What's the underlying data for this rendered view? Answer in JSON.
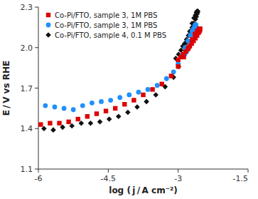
{
  "chart_data": {
    "type": "scatter",
    "xlabel": "log ( j / A cm⁻²)",
    "ylabel": "E / V vs RHE",
    "xlim": [
      -6,
      -1.5
    ],
    "ylim": [
      1.1,
      2.3
    ],
    "xticks": [
      -6,
      -4.5,
      -3,
      -1.5
    ],
    "yticks": [
      1.1,
      1.4,
      1.7,
      {
        "value": 2.0,
        "label": "2.0"
      },
      2.3
    ],
    "grid": false,
    "legend": "upper left",
    "series": [
      {
        "name": "Co-Pi/FTO, sample 3, 1M PBS",
        "color": "#dd0000",
        "marker": "square",
        "x": [
          -5.95,
          -5.75,
          -5.55,
          -5.35,
          -5.15,
          -4.95,
          -4.75,
          -4.55,
          -4.35,
          -4.15,
          -3.95,
          -3.75,
          -3.55,
          -3.35,
          -3.15,
          -3.0,
          -2.88,
          -2.78,
          -2.7,
          -2.64,
          -2.595,
          -2.565,
          -2.545,
          -2.535,
          -2.53,
          -2.535,
          -2.545,
          -2.565,
          -2.595,
          -2.63,
          -2.67,
          -2.71,
          -2.75,
          -2.79,
          -2.84,
          -2.89,
          -2.94,
          -3.0
        ],
        "values": [
          1.43,
          1.44,
          1.44,
          1.45,
          1.47,
          1.49,
          1.51,
          1.53,
          1.55,
          1.58,
          1.61,
          1.65,
          1.69,
          1.73,
          1.79,
          1.86,
          1.93,
          2.0,
          2.06,
          2.1,
          2.12,
          2.13,
          2.14,
          2.14,
          2.14,
          2.13,
          2.12,
          2.11,
          2.09,
          2.07,
          2.05,
          2.03,
          2.01,
          1.99,
          1.97,
          1.95,
          1.93,
          1.91
        ]
      },
      {
        "name": "Co-Pi/FTO, sample 3, 1M PBS",
        "color": "#1e90ff",
        "marker": "circle",
        "x": [
          -5.85,
          -5.65,
          -5.45,
          -5.25,
          -5.05,
          -4.85,
          -4.65,
          -4.45,
          -4.25,
          -4.05,
          -3.85,
          -3.65,
          -3.45,
          -3.25,
          -3.1,
          -3.0,
          -2.92,
          -2.85,
          -2.79,
          -2.74,
          -2.7,
          -2.67,
          -2.645,
          -2.63,
          -2.62,
          -2.615,
          -2.62,
          -2.63,
          -2.65,
          -2.67,
          -2.7,
          -2.73,
          -2.76,
          -2.79,
          -2.82,
          -2.86
        ],
        "values": [
          1.57,
          1.56,
          1.55,
          1.54,
          1.57,
          1.59,
          1.6,
          1.61,
          1.63,
          1.65,
          1.67,
          1.69,
          1.72,
          1.77,
          1.82,
          1.88,
          1.94,
          2.0,
          2.05,
          2.09,
          2.12,
          2.14,
          2.16,
          2.17,
          2.17,
          2.16,
          2.14,
          2.12,
          2.1,
          2.07,
          2.05,
          2.03,
          2.01,
          1.99,
          1.97,
          1.95
        ]
      },
      {
        "name": "Co-Pi/FTO, sample 4, 0.1 M PBS",
        "color": "#111111",
        "marker": "diamond",
        "x": [
          -5.88,
          -5.68,
          -5.48,
          -5.28,
          -5.08,
          -4.88,
          -4.68,
          -4.48,
          -4.28,
          -4.08,
          -3.88,
          -3.68,
          -3.48,
          -3.28,
          -3.1,
          -2.99,
          -2.9,
          -2.82,
          -2.75,
          -2.7,
          -2.66,
          -2.63,
          -2.61,
          -2.595,
          -2.585,
          -2.58,
          -2.585,
          -2.595,
          -2.61,
          -2.63,
          -2.66,
          -2.7,
          -2.74,
          -2.78,
          -2.82,
          -2.86,
          -2.9,
          -2.94,
          -2.99,
          -3.05
        ],
        "values": [
          1.4,
          1.39,
          1.41,
          1.42,
          1.44,
          1.44,
          1.45,
          1.47,
          1.49,
          1.52,
          1.56,
          1.6,
          1.65,
          1.71,
          1.78,
          1.86,
          1.95,
          2.04,
          2.12,
          2.18,
          2.22,
          2.24,
          2.26,
          2.27,
          2.27,
          2.27,
          2.26,
          2.25,
          2.23,
          2.21,
          2.18,
          2.15,
          2.12,
          2.09,
          2.06,
          2.03,
          2.01,
          1.98,
          1.95,
          1.92
        ]
      }
    ]
  }
}
